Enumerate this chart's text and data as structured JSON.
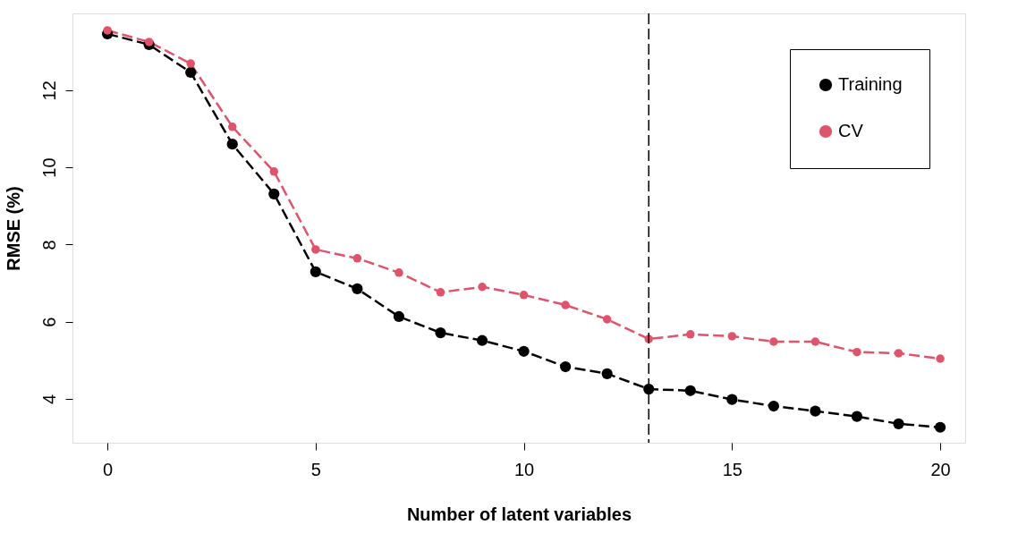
{
  "chart_data": {
    "type": "line",
    "xlabel": "Number of latent variables",
    "ylabel": "RMSE (%)",
    "x": [
      0,
      1,
      2,
      3,
      4,
      5,
      6,
      7,
      8,
      9,
      10,
      11,
      12,
      13,
      14,
      15,
      16,
      17,
      18,
      19,
      20
    ],
    "series": [
      {
        "name": "Training",
        "color": "#000000",
        "values": [
          13.46,
          13.18,
          12.46,
          10.6,
          9.31,
          7.29,
          6.85,
          6.13,
          5.71,
          5.51,
          5.23,
          4.83,
          4.65,
          4.25,
          4.21,
          3.98,
          3.81,
          3.68,
          3.54,
          3.35,
          3.26
        ]
      },
      {
        "name": "CV",
        "color": "#df536b",
        "values": [
          13.55,
          13.25,
          12.69,
          11.05,
          9.89,
          7.87,
          7.64,
          7.27,
          6.76,
          6.9,
          6.69,
          6.43,
          6.06,
          5.55,
          5.67,
          5.62,
          5.48,
          5.48,
          5.21,
          5.18,
          5.04
        ]
      }
    ],
    "xlim": [
      -0.84,
      20.6
    ],
    "ylim": [
      2.86,
      13.99
    ],
    "xticks": [
      0,
      5,
      10,
      15,
      20
    ],
    "yticks": [
      4,
      6,
      8,
      10,
      12
    ],
    "ref_lines": [
      {
        "axis": "x",
        "value": 13,
        "line_style": "dashed",
        "color": "#000000"
      }
    ],
    "grid": false,
    "legend": "top right",
    "marker": "circle",
    "line_style": "dashed"
  }
}
